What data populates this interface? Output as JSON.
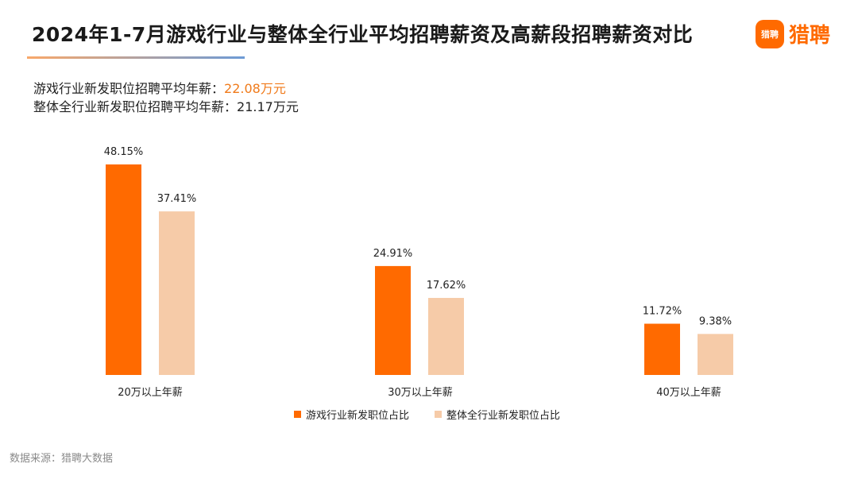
{
  "title": "2024年1-7月游戏行业与整体全行业平均招聘薪资及高薪段招聘薪资对比",
  "logo": {
    "badge_text": "猎聘",
    "text": "猎聘"
  },
  "summary": {
    "line1_label": "游戏行业新发职位招聘平均年薪：",
    "line1_value": "22.08万元",
    "line2_label": "整体全行业新发职位招聘平均年薪：",
    "line2_value": "21.17万元"
  },
  "colors": {
    "game": "#ff6a00",
    "overall": "#f6cba8",
    "accent_text": "#f07a1a"
  },
  "source": "数据来源：猎聘大数据",
  "chart_data": {
    "type": "bar",
    "categories": [
      "20万以上年薪",
      "30万以上年薪",
      "40万以上年薪"
    ],
    "series": [
      {
        "name": "游戏行业新发职位占比",
        "values": [
          48.15,
          24.91,
          11.72
        ],
        "labels": [
          "48.15%",
          "24.91%",
          "11.72%"
        ],
        "color": "#ff6a00"
      },
      {
        "name": "整体全行业新发职位占比",
        "values": [
          37.41,
          17.62,
          9.38
        ],
        "labels": [
          "37.41%",
          "17.62%",
          "9.38%"
        ],
        "color": "#f6cba8"
      }
    ],
    "unit": "%",
    "legend": "bottom",
    "grid": false
  }
}
